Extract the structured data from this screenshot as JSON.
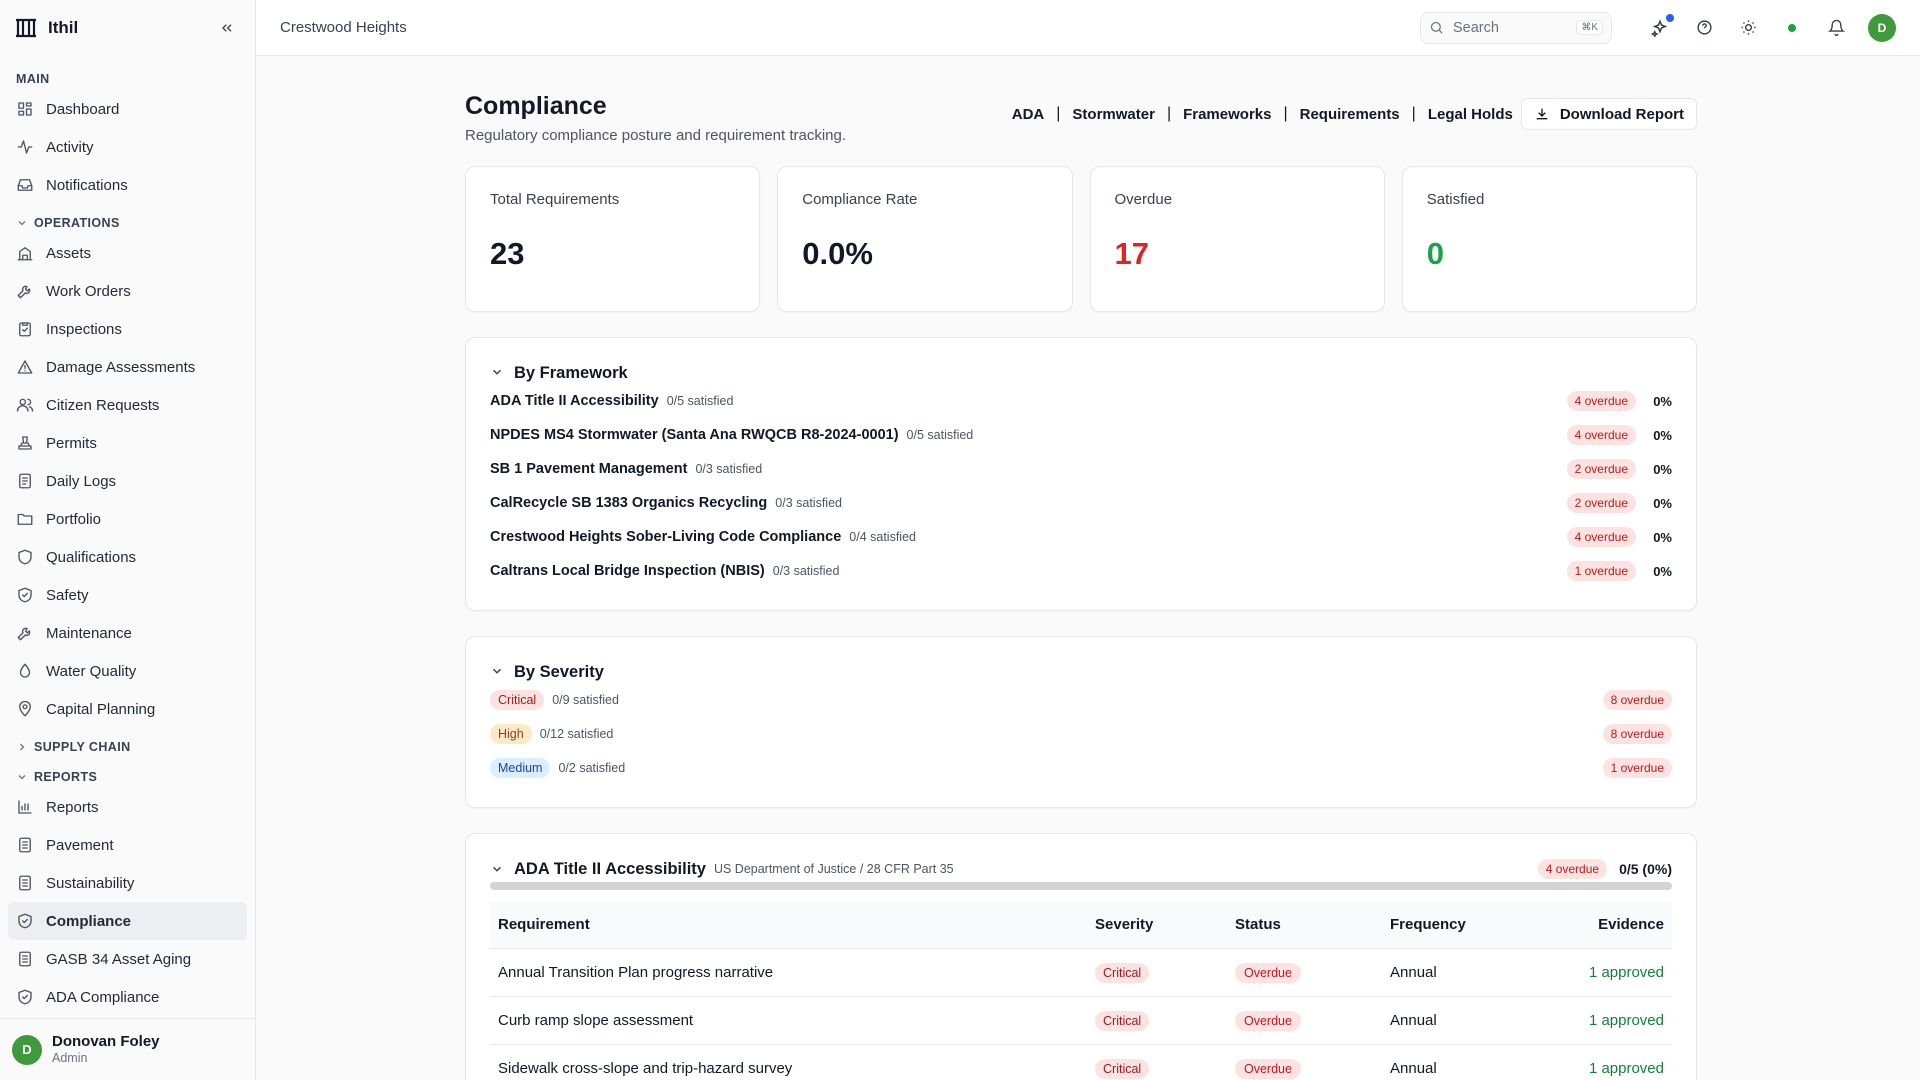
{
  "app": {
    "name": "Ithil"
  },
  "sidebar": {
    "main_label": "MAIN",
    "main_items": [
      {
        "label": "Dashboard",
        "icon": "dashboard-icon"
      },
      {
        "label": "Activity",
        "icon": "activity-icon"
      },
      {
        "label": "Notifications",
        "icon": "inbox-icon"
      }
    ],
    "operations_label": "OPERATIONS",
    "operations_items": [
      {
        "label": "Assets",
        "icon": "building-icon"
      },
      {
        "label": "Work Orders",
        "icon": "wrench-icon"
      },
      {
        "label": "Inspections",
        "icon": "clipboard-icon"
      },
      {
        "label": "Damage Assessments",
        "icon": "warning-icon"
      },
      {
        "label": "Citizen Requests",
        "icon": "users-icon"
      },
      {
        "label": "Permits",
        "icon": "stamp-icon"
      },
      {
        "label": "Daily Logs",
        "icon": "log-icon"
      },
      {
        "label": "Portfolio",
        "icon": "folder-icon"
      },
      {
        "label": "Qualifications",
        "icon": "shield-icon"
      },
      {
        "label": "Safety",
        "icon": "shield-check-icon"
      },
      {
        "label": "Maintenance",
        "icon": "wrench-icon"
      },
      {
        "label": "Water Quality",
        "icon": "droplet-icon"
      },
      {
        "label": "Capital Planning",
        "icon": "map-pin-icon"
      }
    ],
    "supply_chain_label": "SUPPLY CHAIN",
    "reports_label": "REPORTS",
    "reports_items": [
      {
        "label": "Reports",
        "icon": "bar-chart-icon"
      },
      {
        "label": "Pavement",
        "icon": "document-icon"
      },
      {
        "label": "Sustainability",
        "icon": "document-icon"
      },
      {
        "label": "Compliance",
        "icon": "shield-check-icon",
        "active": true
      },
      {
        "label": "GASB 34 Asset Aging",
        "icon": "document-icon"
      },
      {
        "label": "ADA Compliance",
        "icon": "shield-check-icon"
      }
    ],
    "user": {
      "initial": "D",
      "name": "Donovan Foley",
      "role": "Admin"
    }
  },
  "topbar": {
    "breadcrumb": "Crestwood Heights",
    "search_label": "Search",
    "search_shortcut": "⌘K",
    "avatar_initial": "D"
  },
  "page": {
    "title": "Compliance",
    "subtitle": "Regulatory compliance posture and requirement tracking.",
    "links": [
      "ADA",
      "Stormwater",
      "Frameworks",
      "Requirements",
      "Legal Holds"
    ],
    "download_label": "Download Report"
  },
  "stats": [
    {
      "label": "Total Requirements",
      "value": "23",
      "tone": "default"
    },
    {
      "label": "Compliance Rate",
      "value": "0.0%",
      "tone": "default"
    },
    {
      "label": "Overdue",
      "value": "17",
      "tone": "red"
    },
    {
      "label": "Satisfied",
      "value": "0",
      "tone": "green"
    }
  ],
  "by_framework": {
    "title": "By Framework",
    "rows": [
      {
        "name": "ADA Title II Accessibility",
        "satisfied": "0/5 satisfied",
        "overdue": "4 overdue",
        "pct": "0%"
      },
      {
        "name": "NPDES MS4 Stormwater (Santa Ana RWQCB R8-2024-0001)",
        "satisfied": "0/5 satisfied",
        "overdue": "4 overdue",
        "pct": "0%"
      },
      {
        "name": "SB 1 Pavement Management",
        "satisfied": "0/3 satisfied",
        "overdue": "2 overdue",
        "pct": "0%"
      },
      {
        "name": "CalRecycle SB 1383 Organics Recycling",
        "satisfied": "0/3 satisfied",
        "overdue": "2 overdue",
        "pct": "0%"
      },
      {
        "name": "Crestwood Heights Sober-Living Code Compliance",
        "satisfied": "0/4 satisfied",
        "overdue": "4 overdue",
        "pct": "0%"
      },
      {
        "name": "Caltrans Local Bridge Inspection (NBIS)",
        "satisfied": "0/3 satisfied",
        "overdue": "1 overdue",
        "pct": "0%"
      }
    ]
  },
  "by_severity": {
    "title": "By Severity",
    "rows": [
      {
        "severity": "Critical",
        "level": "critical",
        "satisfied": "0/9 satisfied",
        "overdue": "8 overdue"
      },
      {
        "severity": "High",
        "level": "high",
        "satisfied": "0/12 satisfied",
        "overdue": "8 overdue"
      },
      {
        "severity": "Medium",
        "level": "medium",
        "satisfied": "0/2 satisfied",
        "overdue": "1 overdue"
      }
    ]
  },
  "framework_detail": {
    "name": "ADA Title II Accessibility",
    "reference": "US Department of Justice / 28 CFR Part 35",
    "overdue": "4 overdue",
    "score": "0/5 (0%)",
    "progress": 0,
    "columns": [
      "Requirement",
      "Severity",
      "Status",
      "Frequency",
      "Evidence"
    ],
    "rows": [
      {
        "requirement": "Annual Transition Plan progress narrative",
        "severity": "Critical",
        "status": "Overdue",
        "frequency": "Annual",
        "evidence": "1 approved"
      },
      {
        "requirement": "Curb ramp slope assessment",
        "severity": "Critical",
        "status": "Overdue",
        "frequency": "Annual",
        "evidence": "1 approved"
      },
      {
        "requirement": "Sidewalk cross-slope and trip-hazard survey",
        "severity": "Critical",
        "status": "Overdue",
        "frequency": "Annual",
        "evidence": "1 approved"
      }
    ]
  },
  "colors": {
    "accent_green": "#3f9a3d",
    "danger": "#dc2626",
    "success": "#16a34a"
  }
}
